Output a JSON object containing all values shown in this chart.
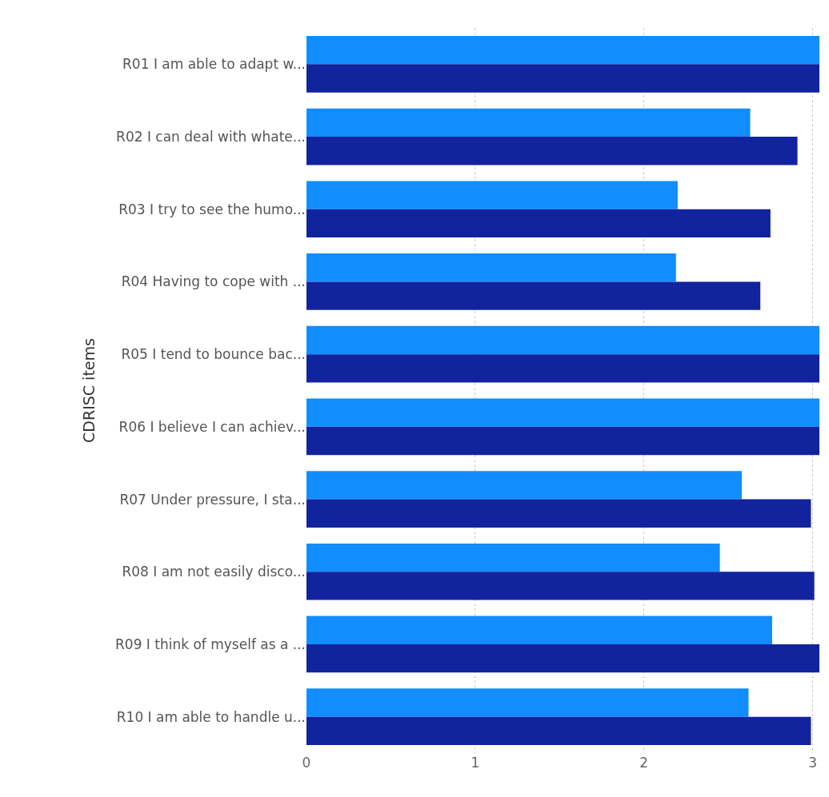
{
  "chart_data": {
    "type": "bar",
    "orientation": "horizontal",
    "ylabel": "CDRISC items",
    "categories": [
      "R01 I am able to adapt w...",
      "R02 I can deal with whate...",
      "R03 I try to see the humo...",
      "R04 Having to cope with ...",
      "R05 I tend to bounce bac...",
      "R06 I believe I can achiev...",
      "R07 Under pressure, I sta...",
      "R08 I am not easily disco...",
      "R09 I think of myself as a ...",
      "R10 I am able to handle u..."
    ],
    "series": [
      {
        "color": "#118dff",
        "values": [
          3.04,
          2.63,
          2.2,
          2.19,
          3.04,
          3.04,
          2.58,
          2.45,
          2.76,
          2.62
        ]
      },
      {
        "color": "#12239e",
        "values": [
          3.04,
          2.91,
          2.75,
          2.69,
          3.04,
          3.04,
          2.99,
          3.01,
          3.04,
          2.99
        ]
      }
    ],
    "xlim": [
      0,
      3.04
    ],
    "xticks": [
      0,
      1,
      2,
      3
    ],
    "grid": "x"
  }
}
